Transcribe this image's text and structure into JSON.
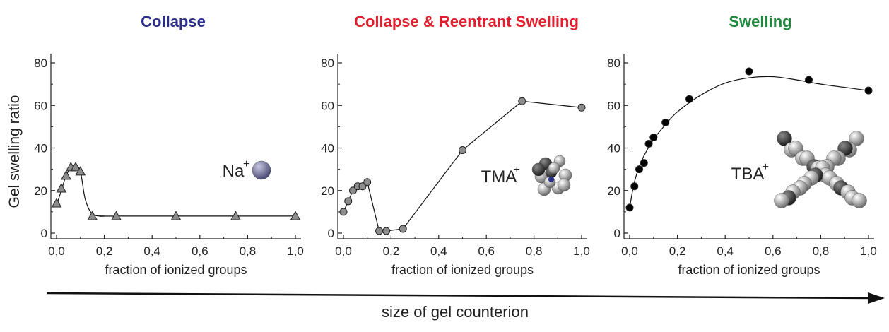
{
  "chart_data": [
    {
      "type": "scatter",
      "title": "Collapse",
      "title_color": "#2b2e8a",
      "xlabel": "fraction of ionized groups",
      "ylabel": "Gel swelling ratio",
      "xlim": [
        0,
        1
      ],
      "ylim": [
        0,
        80
      ],
      "xticks": [
        "0,0",
        "0,2",
        "0,4",
        "0,6",
        "0,8",
        "1,0"
      ],
      "yticks": [
        "0",
        "20",
        "40",
        "60",
        "80"
      ],
      "marker": "triangle",
      "marker_color": "#8c8c8c",
      "ion_label": "Na",
      "ion_charge": "+",
      "x": [
        0.0,
        0.02,
        0.04,
        0.06,
        0.08,
        0.1,
        0.15,
        0.25,
        0.5,
        0.75,
        1.0
      ],
      "y": [
        14,
        21,
        27,
        31,
        31,
        29,
        8,
        8,
        8,
        8,
        8
      ],
      "curve_x": [
        0.0,
        0.02,
        0.04,
        0.06,
        0.08,
        0.1,
        0.12,
        0.15,
        0.2,
        0.25,
        1.0
      ],
      "curve_y": [
        13,
        20,
        27,
        30.5,
        31.5,
        29,
        16,
        9,
        8,
        8,
        8
      ]
    },
    {
      "type": "line",
      "title": "Collapse & Reentrant Swelling",
      "title_color": "#e0202e",
      "xlabel": "fraction of ionized groups",
      "xlim": [
        0,
        1
      ],
      "ylim": [
        0,
        80
      ],
      "xticks": [
        "0,0",
        "0,2",
        "0,4",
        "0,6",
        "0,8",
        "1,0"
      ],
      "yticks": [
        "0",
        "20",
        "40",
        "60",
        "80"
      ],
      "marker": "circle",
      "marker_color": "#8c8c8c",
      "ion_label": "TMA",
      "ion_charge": "+",
      "x": [
        0.0,
        0.02,
        0.04,
        0.06,
        0.08,
        0.1,
        0.15,
        0.18,
        0.25,
        0.5,
        0.75,
        1.0
      ],
      "y": [
        10,
        15,
        20,
        22,
        22,
        24,
        1,
        1,
        2,
        39,
        62,
        59
      ]
    },
    {
      "type": "scatter",
      "title": "Swelling",
      "title_color": "#1f8a3d",
      "xlabel": "fraction of ionized groups",
      "xlim": [
        0,
        1
      ],
      "ylim": [
        0,
        80
      ],
      "xticks": [
        "0,0",
        "0,2",
        "0,4",
        "0,6",
        "0,8",
        "1,0"
      ],
      "yticks": [
        "0",
        "20",
        "40",
        "60",
        "80"
      ],
      "marker": "circle",
      "marker_color": "#000000",
      "ion_label": "TBA",
      "ion_charge": "+",
      "x": [
        0.0,
        0.02,
        0.04,
        0.06,
        0.08,
        0.1,
        0.15,
        0.25,
        0.5,
        0.75,
        1.0
      ],
      "y": [
        12,
        22,
        30,
        33,
        42,
        45,
        52,
        63,
        76,
        72,
        67
      ],
      "curve_x": [
        0.0,
        0.02,
        0.05,
        0.1,
        0.15,
        0.2,
        0.3,
        0.4,
        0.5,
        0.6,
        0.7,
        0.8,
        0.9,
        1.0
      ],
      "curve_y": [
        12,
        24,
        34,
        44,
        51,
        57,
        65,
        70.5,
        73,
        73.5,
        72,
        70,
        68.5,
        67
      ]
    }
  ],
  "arrow": {
    "label": "size of gel counterion"
  }
}
